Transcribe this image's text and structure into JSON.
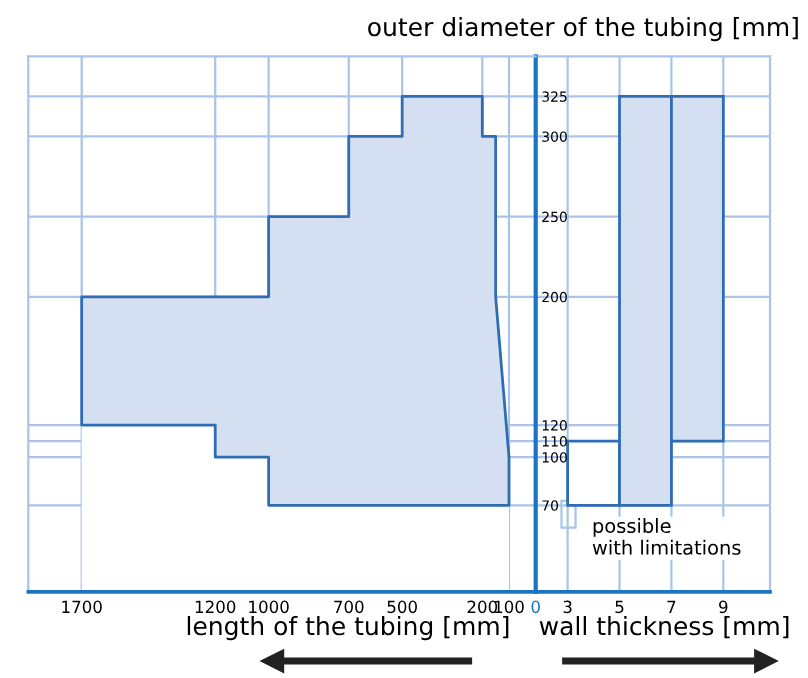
{
  "chart_data": [
    {
      "type": "area",
      "stacked": true,
      "xlabel": "length of the tubing [mm]",
      "ylabel": "outer diameter of the tubing [mm]",
      "x": [
        1700,
        1200,
        1200,
        1000,
        1000,
        700,
        700,
        500,
        500,
        200,
        200,
        150,
        150,
        100,
        100
      ],
      "series": [
        {
          "color": "#ffffff",
          "values": [
            120,
            120,
            100,
            100,
            70,
            70,
            70,
            70,
            70,
            70,
            70,
            70,
            70,
            70,
            70
          ]
        },
        {
          "color": "#d4e0f1",
          "values": [
            80,
            80,
            100,
            100,
            180,
            180,
            230,
            230,
            255,
            255,
            230,
            230,
            130,
            30,
            null
          ]
        }
      ],
      "xlim": [
        1900,
        0
      ],
      "ylim": [
        16,
        350
      ],
      "xticks": [
        1700,
        1200,
        1000,
        700,
        500,
        200,
        100,
        0
      ],
      "yticks": [
        70,
        100,
        110,
        120,
        200,
        250,
        300,
        325
      ],
      "grid": true
    },
    {
      "type": "bar",
      "xlabel": "wall thickness [mm]",
      "x": [
        4,
        6,
        8
      ],
      "base": [
        70,
        70,
        110
      ],
      "values": [
        40,
        255,
        215
      ],
      "colors": [
        "#ffffff",
        "#d4e0f1",
        "#d4e0f1"
      ],
      "annotations": [
        "possible\nwith limitations"
      ],
      "xlim": [
        1.77,
        10.8
      ],
      "ylim": [
        16,
        350
      ],
      "xticks": [
        3,
        5,
        7,
        9
      ],
      "yticks": [
        70,
        100,
        110,
        120,
        200,
        250,
        300,
        325
      ],
      "grid": true,
      "tick_labels": "x"
    }
  ]
}
